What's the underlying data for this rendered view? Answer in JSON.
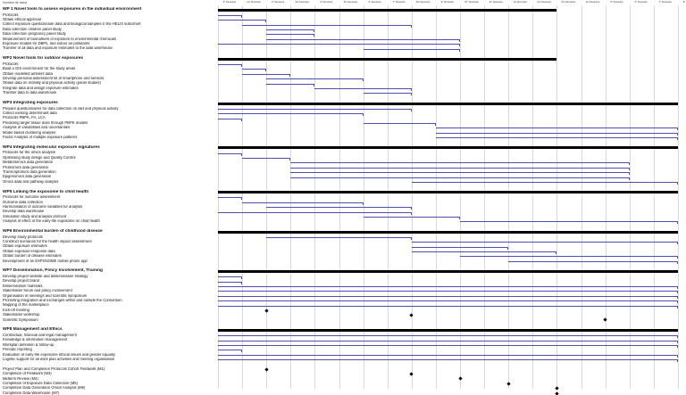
{
  "columns": [
    "6° Semestre",
    "1ro Semestre",
    "2º Semestre",
    "3ro Semestre",
    "4º Semestre",
    "5ro Semestre",
    "6º Semestre",
    "7º Semestre",
    "8ro Semestre",
    "9º Semestre",
    "10º Semestre",
    "11º Semestre",
    "1ro Semestre",
    "2ro Semestre",
    "3ro Semestre",
    "4ro Semestre",
    "5º Semestre",
    "6º Semestre",
    "7º Semestre",
    "8º Semestre"
  ],
  "header_label": "Nombre de tarea",
  "rows": [
    {
      "label": "WP 1 Novel tools to assess exposures in the individual environment",
      "type": "wp",
      "start": 0,
      "end": 14
    },
    {
      "label": "Protocols",
      "type": "task",
      "start": 0,
      "end": 1
    },
    {
      "label": "Obtain ethical approval",
      "type": "task",
      "start": 0,
      "end": 2
    },
    {
      "label": "Collect exposure questionnaire data and biological samples in the HELIX subcohort",
      "type": "task",
      "start": 1,
      "end": 8
    },
    {
      "label": "Data collection children panel study",
      "type": "task",
      "start": 2,
      "end": 4
    },
    {
      "label": "Data collection pregnancy panel study",
      "type": "task",
      "start": 2,
      "end": 4
    },
    {
      "label": "Measurement of biomarkers of exposure to environmental chemicals",
      "type": "task",
      "start": 2,
      "end": 10
    },
    {
      "label": "Exposure models for DBPs, and indoor air pollutants",
      "type": "task",
      "start": 0,
      "end": 10
    },
    {
      "label": "Transfer of all data and exposure estimates to the data warehouse",
      "type": "task",
      "start": 6,
      "end": 10
    },
    {
      "label": "",
      "type": "gap"
    },
    {
      "label": "WP2 Novel tools for outdoor exposures",
      "type": "wp",
      "start": 0,
      "end": 14
    },
    {
      "label": "Protocols",
      "type": "task",
      "start": 0,
      "end": 1
    },
    {
      "label": "Build a GIS environment for the study areas",
      "type": "task",
      "start": 1,
      "end": 2
    },
    {
      "label": "Obtain modelled ambient data",
      "type": "task",
      "start": 1,
      "end": 3
    },
    {
      "label": "Develop personal assessment kit of smartphone and sensors",
      "type": "task",
      "start": 2,
      "end": 6
    },
    {
      "label": "Obtain data on mobility and physical activity (panel studies)",
      "type": "task",
      "start": 2,
      "end": 4
    },
    {
      "label": "Integrate data and assign exposure estimates",
      "type": "task",
      "start": 4,
      "end": 8
    },
    {
      "label": "Transfer data to data warehouse",
      "type": "task",
      "start": 6,
      "end": 8
    },
    {
      "label": "",
      "type": "gap"
    },
    {
      "label": "WP3 Integrating exposures",
      "type": "wp",
      "start": 0,
      "end": 19
    },
    {
      "label": "Prepare questionnaires for data collection on diet and physical activity",
      "type": "task",
      "start": 0,
      "end": 8
    },
    {
      "label": "Collect existing determinant data",
      "type": "task",
      "start": 0,
      "end": 6
    },
    {
      "label": "Protocols PBPK, FA, LCA",
      "type": "task",
      "start": 0,
      "end": 1
    },
    {
      "label": "Predicting target tissue dose through PBPK models",
      "type": "task",
      "start": 6,
      "end": 9
    },
    {
      "label": "Analysis of variabilities and uncertainties",
      "type": "task",
      "start": 9,
      "end": 19
    },
    {
      "label": "Model based clustering analysis",
      "type": "task",
      "start": 9,
      "end": 19
    },
    {
      "label": "Factor Analysis of multiple exposure patterns",
      "type": "task",
      "start": 9,
      "end": 19
    },
    {
      "label": "",
      "type": "gap"
    },
    {
      "label": "WP4 Integrating molecular exposure signatures",
      "type": "wp",
      "start": 0,
      "end": 19
    },
    {
      "label": "Protocols for the omics analysis",
      "type": "task",
      "start": 0,
      "end": 1
    },
    {
      "label": "Optimising study design and Quality Control",
      "type": "task",
      "start": 1,
      "end": 3
    },
    {
      "label": "Metabolomics data generation",
      "type": "task",
      "start": 3,
      "end": 17
    },
    {
      "label": "Proteomics data generation",
      "type": "task",
      "start": 3,
      "end": 17
    },
    {
      "label": "Transcriptomics data generation",
      "type": "task",
      "start": 3,
      "end": 17
    },
    {
      "label": "Epigenomics data generation",
      "type": "task",
      "start": 3,
      "end": 17
    },
    {
      "label": "Omics data and pathway analysis",
      "type": "task",
      "start": 8,
      "end": 19
    },
    {
      "label": "",
      "type": "gap"
    },
    {
      "label": "WP5 Linking the exposome to child health",
      "type": "wp",
      "start": 0,
      "end": 19
    },
    {
      "label": "Protocols for outcome assessment",
      "type": "task",
      "start": 0,
      "end": 1
    },
    {
      "label": "Outcome data collection",
      "type": "task",
      "start": 1,
      "end": 6
    },
    {
      "label": "Harmonisation of outcome variables for analysis",
      "type": "task",
      "start": 2,
      "end": 8
    },
    {
      "label": "Develop data warehouse",
      "type": "task",
      "start": 0,
      "end": 8
    },
    {
      "label": "Simulation study and analysis protocol",
      "type": "task",
      "start": 6,
      "end": 10
    },
    {
      "label": "Analysis of effect of the early-life exposome on child health",
      "type": "task",
      "start": 10,
      "end": 19
    },
    {
      "label": "",
      "type": "gap"
    },
    {
      "label": "WP6 Environmental burden of childhood disease",
      "type": "wp",
      "start": 0,
      "end": 19
    },
    {
      "label": "Develop study protocols",
      "type": "task",
      "start": 2,
      "end": 8
    },
    {
      "label": "Construct scenarios for the health impact assessment",
      "type": "task",
      "start": 8,
      "end": 19
    },
    {
      "label": "Obtain exposure estimates",
      "type": "task",
      "start": 8,
      "end": 12
    },
    {
      "label": "Obtain exposure-response data",
      "type": "task",
      "start": 8,
      "end": 14
    },
    {
      "label": "Obtain burden of disease estimates",
      "type": "task",
      "start": 10,
      "end": 19
    },
    {
      "label": "Development of an EXPOSOME mobile phone app",
      "type": "task",
      "start": 12,
      "end": 19
    },
    {
      "label": "",
      "type": "gap"
    },
    {
      "label": "WP7 Dissemination, Policy Involvement, Training",
      "type": "wp",
      "start": 0,
      "end": 19
    },
    {
      "label": "Develop project website and dissemination strategy",
      "type": "task",
      "start": 0,
      "end": 1
    },
    {
      "label": "Develop project brand",
      "type": "task",
      "start": 0,
      "end": 1
    },
    {
      "label": "Dissemination materials",
      "type": "task",
      "start": 0,
      "end": 19
    },
    {
      "label": "Stakeholder forum and policy involvement",
      "type": "task",
      "start": 0,
      "end": 19
    },
    {
      "label": "Organisation of meetings and scientific symposium",
      "type": "task",
      "start": 0,
      "end": 19
    },
    {
      "label": "Promoting integration and exchanges within and outside the Consortium",
      "type": "task",
      "start": 0,
      "end": 19
    },
    {
      "label": "Mapping of the marketplace",
      "type": "task",
      "start": 0,
      "end": 19
    },
    {
      "label": "Kick-off meeting",
      "type": "milestone",
      "at": 2
    },
    {
      "label": "Stakeholder workshop",
      "type": "milestone",
      "at": 8
    },
    {
      "label": "Scientific Symposium",
      "type": "milestone",
      "at": 16
    },
    {
      "label": "",
      "type": "gap"
    },
    {
      "label": "WP8 Management and Ethics",
      "type": "wp",
      "start": 0,
      "end": 19
    },
    {
      "label": "Contractual, financial and legal management",
      "type": "task",
      "start": 0,
      "end": 19
    },
    {
      "label": "Knowledge & information management",
      "type": "task",
      "start": 0,
      "end": 19
    },
    {
      "label": "Workplan definition & follow-up",
      "type": "task",
      "start": 0,
      "end": 19
    },
    {
      "label": "Periodic reporting",
      "type": "task",
      "start": 0,
      "end": 1
    },
    {
      "label": "Evaluation of early-life exposome ethical issues and gender equality",
      "type": "task",
      "start": 0,
      "end": 19
    },
    {
      "label": "Logistic support for all work plan activities and meeting organisation",
      "type": "task",
      "start": 0,
      "end": 19
    },
    {
      "label": "",
      "type": "gap"
    },
    {
      "label": "Project Plan and Completion Protocols Cohort Fieldwork (M1)",
      "type": "milestone",
      "at": 2
    },
    {
      "label": "Completion of Fieldwork (M3)",
      "type": "milestone",
      "at": 8
    },
    {
      "label": "Midterm Review (M4)",
      "type": "milestone",
      "at": 10
    },
    {
      "label": "Completion of Exposure Data Collection (M5)",
      "type": "milestone",
      "at": 12
    },
    {
      "label": "Completion Data Generation Omics Analysis (M6)",
      "type": "milestone",
      "at": 14
    },
    {
      "label": "Completion Data Warehouse (M7)",
      "type": "milestone",
      "at": 14
    }
  ]
}
